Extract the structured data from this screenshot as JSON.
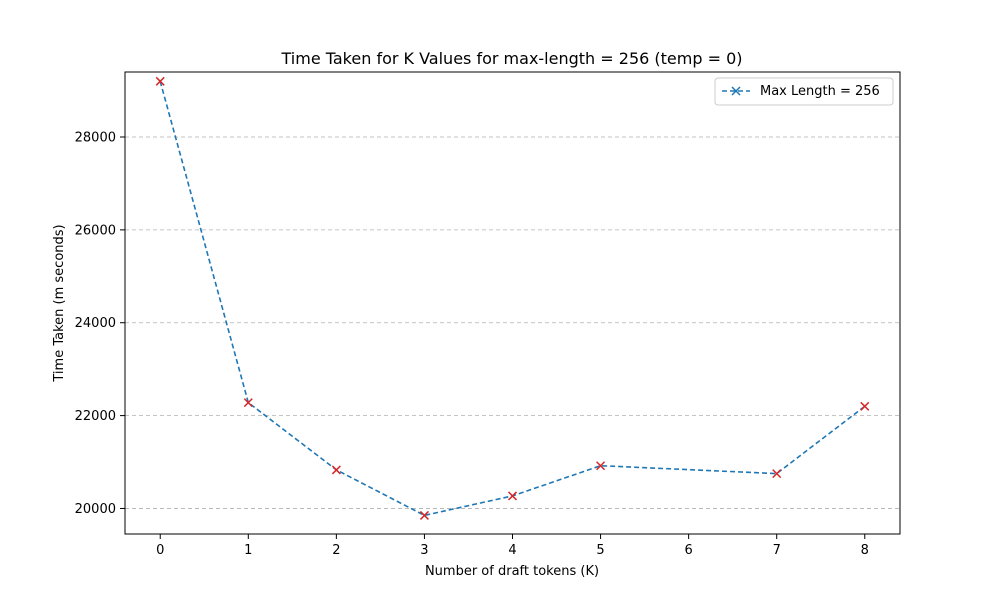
{
  "chart_data": {
    "type": "line",
    "title": "Time Taken for K Values for max-length = 256 (temp = 0)",
    "xlabel": "Number of draft tokens (K)",
    "ylabel": "Time Taken (m seconds)",
    "x": [
      0,
      1,
      2,
      3,
      4,
      5,
      7,
      8
    ],
    "xticks": [
      0,
      1,
      2,
      3,
      4,
      5,
      6,
      7,
      8
    ],
    "yticks": [
      20000,
      22000,
      24000,
      26000,
      28000
    ],
    "xlim": [
      -0.4,
      8.4
    ],
    "ylim": [
      19450,
      29400
    ],
    "grid": "y-dashed",
    "legend_position": "top-right",
    "series": [
      {
        "name": "Max Length = 256",
        "values": [
          29200,
          22280,
          20830,
          19850,
          20270,
          20920,
          20750,
          22200
        ],
        "line_color": "#1f77b4",
        "marker_color": "#d62728",
        "line_style": "dashed",
        "marker": "x"
      }
    ]
  }
}
